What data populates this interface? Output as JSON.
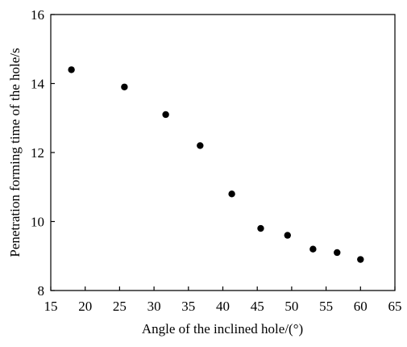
{
  "chart_data": {
    "type": "scatter",
    "title": "",
    "xlabel": "Angle of the inclined hole/(°)",
    "ylabel": "Penetration forming time of the hole/s",
    "xlim": [
      15,
      65
    ],
    "ylim": [
      8,
      16
    ],
    "xticks": [
      "15",
      "20",
      "25",
      "30",
      "35",
      "40",
      "45",
      "50",
      "55",
      "60",
      "65"
    ],
    "yticks": [
      "8",
      "10",
      "12",
      "14",
      "16"
    ],
    "grid": false,
    "legend": "none",
    "marker_color": "#000000",
    "series": [
      {
        "x": [
          18.0,
          25.7,
          31.7,
          36.7,
          41.3,
          45.5,
          49.4,
          53.1,
          56.6,
          60.0
        ],
        "y": [
          14.4,
          13.9,
          13.1,
          12.2,
          10.8,
          9.8,
          9.6,
          9.2,
          9.1,
          8.9
        ]
      }
    ]
  }
}
